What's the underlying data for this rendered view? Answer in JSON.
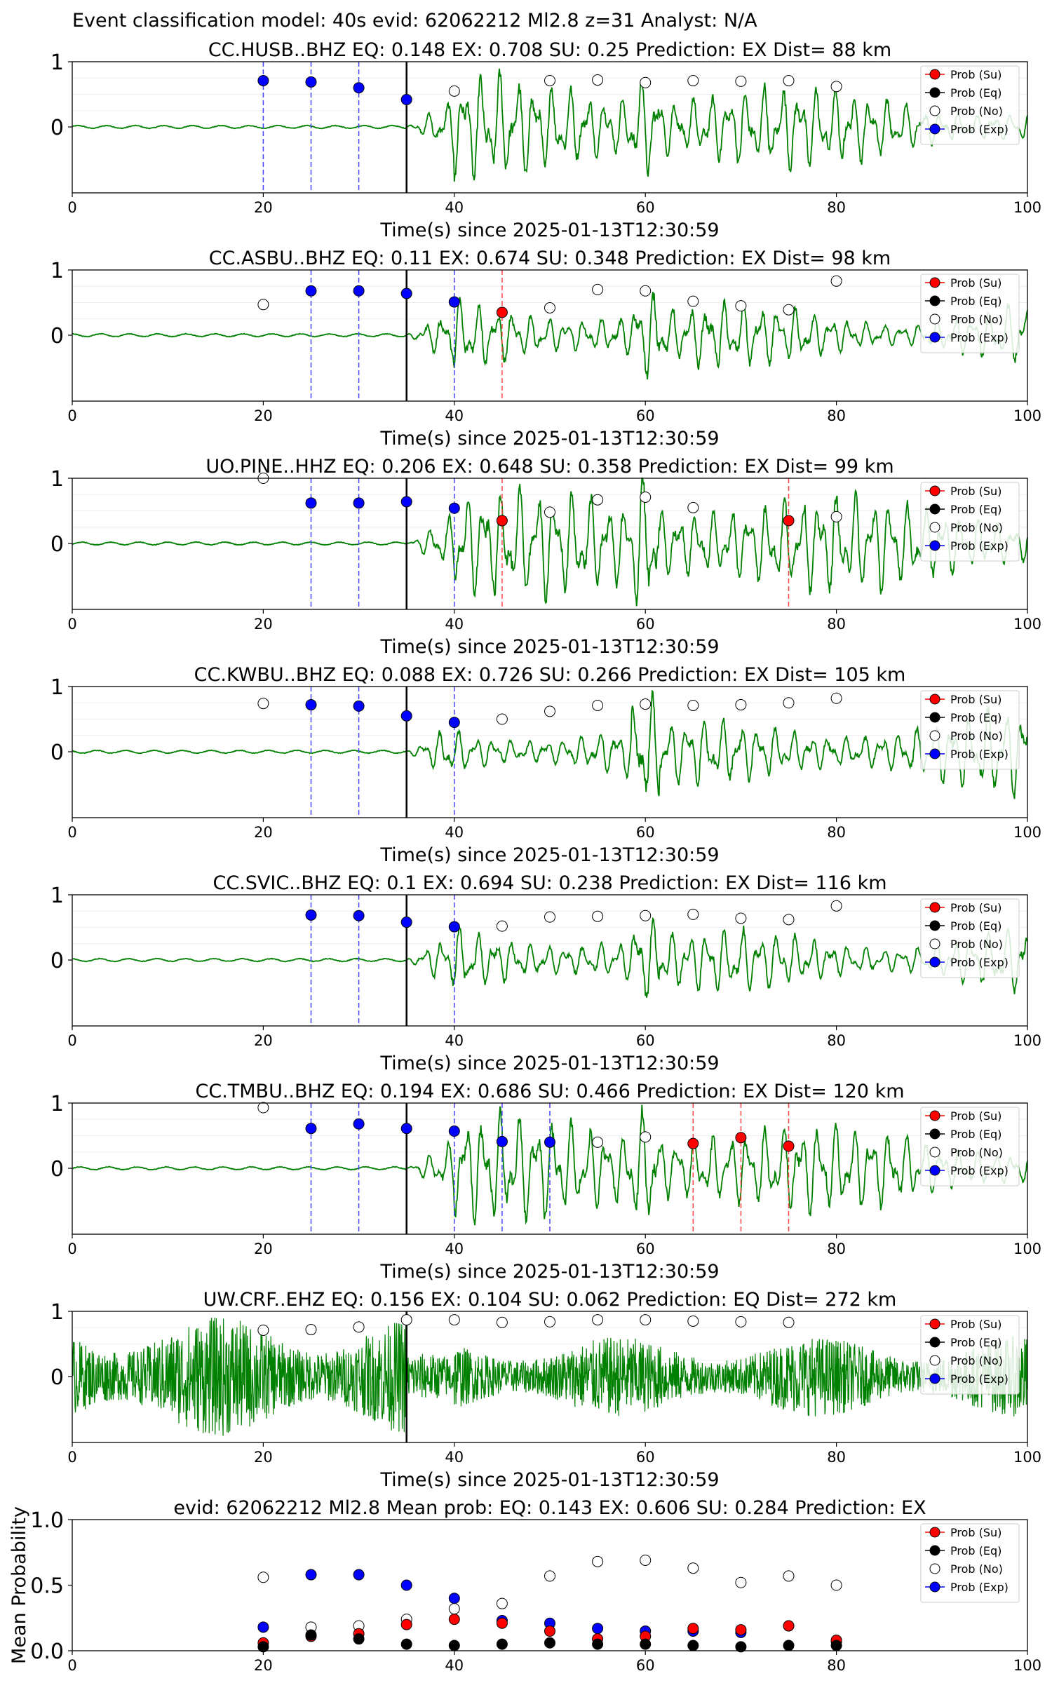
{
  "figure": {
    "title": "Event classification model: 40s evid: 62062212 Ml2.8 z=31 Analyst: N/A"
  },
  "legend_labels": [
    "Prob (Su)",
    "Prob (Eq)",
    "Prob (No)",
    "Prob (Exp)"
  ],
  "colors": {
    "waveform": "#008000",
    "su": "#ff0000",
    "eq": "#000000",
    "no": "#ffffff",
    "exp": "#0000ff",
    "arrival_line": "#000000"
  },
  "chart_data": [
    {
      "type": "line",
      "title": "CC.HUSB..BHZ   EQ: 0.148  EX: 0.708  SU: 0.25   Prediction: EX    Dist= 88 km",
      "xlabel": "Time(s) since 2025-01-13T12:30:59",
      "xlim": [
        0,
        100
      ],
      "xticks": [
        "0",
        "20",
        "40",
        "60",
        "80",
        "100"
      ],
      "yticks": [
        "0",
        "1"
      ],
      "arrival": 35,
      "noise": false,
      "series": [
        {
          "name": "Prob (No)",
          "points": [
            [
              40,
              0.55
            ],
            [
              50,
              0.71
            ],
            [
              55,
              0.72
            ],
            [
              60,
              0.68
            ],
            [
              65,
              0.71
            ],
            [
              70,
              0.7
            ],
            [
              75,
              0.71
            ],
            [
              80,
              0.62
            ]
          ]
        },
        {
          "name": "Prob (Exp)",
          "points": [
            [
              20,
              0.71
            ],
            [
              25,
              0.69
            ],
            [
              30,
              0.6
            ],
            [
              35,
              0.42
            ]
          ]
        },
        {
          "name": "Prob (Su)",
          "points": []
        },
        {
          "name": "Prob (Eq)",
          "points": []
        }
      ]
    },
    {
      "type": "line",
      "title": "CC.ASBU..BHZ   EQ: 0.11  EX: 0.674  SU: 0.348   Prediction: EX    Dist= 98 km",
      "xlabel": "Time(s) since 2025-01-13T12:30:59",
      "xlim": [
        0,
        100
      ],
      "xticks": [
        "0",
        "20",
        "40",
        "60",
        "80",
        "100"
      ],
      "yticks": [
        "0",
        "1"
      ],
      "arrival": 35,
      "noise": false,
      "series": [
        {
          "name": "Prob (No)",
          "points": [
            [
              20,
              0.47
            ],
            [
              50,
              0.42
            ],
            [
              55,
              0.7
            ],
            [
              60,
              0.68
            ],
            [
              65,
              0.52
            ],
            [
              70,
              0.45
            ],
            [
              75,
              0.39
            ],
            [
              80,
              0.83
            ]
          ]
        },
        {
          "name": "Prob (Exp)",
          "points": [
            [
              25,
              0.68
            ],
            [
              30,
              0.68
            ],
            [
              35,
              0.64
            ],
            [
              40,
              0.51
            ]
          ]
        },
        {
          "name": "Prob (Su)",
          "points": [
            [
              45,
              0.35
            ]
          ]
        },
        {
          "name": "Prob (Eq)",
          "points": []
        }
      ]
    },
    {
      "type": "line",
      "title": "UO.PINE..HHZ   EQ: 0.206  EX: 0.648  SU: 0.358   Prediction: EX    Dist= 99 km",
      "xlabel": "Time(s) since 2025-01-13T12:30:59",
      "xlim": [
        0,
        100
      ],
      "xticks": [
        "0",
        "20",
        "40",
        "60",
        "80",
        "100"
      ],
      "yticks": [
        "0",
        "1"
      ],
      "arrival": 35,
      "noise": false,
      "series": [
        {
          "name": "Prob (No)",
          "points": [
            [
              20,
              1.0
            ],
            [
              50,
              0.48
            ],
            [
              55,
              0.67
            ],
            [
              60,
              0.71
            ],
            [
              65,
              0.55
            ],
            [
              80,
              0.41
            ]
          ]
        },
        {
          "name": "Prob (Exp)",
          "points": [
            [
              25,
              0.62
            ],
            [
              30,
              0.62
            ],
            [
              35,
              0.64
            ],
            [
              40,
              0.54
            ]
          ]
        },
        {
          "name": "Prob (Su)",
          "points": [
            [
              45,
              0.35
            ],
            [
              75,
              0.35
            ]
          ]
        },
        {
          "name": "Prob (Eq)",
          "points": []
        }
      ]
    },
    {
      "type": "line",
      "title": "CC.KWBU..BHZ   EQ: 0.088  EX: 0.726  SU: 0.266   Prediction: EX    Dist= 105 km",
      "xlabel": "Time(s) since 2025-01-13T12:30:59",
      "xlim": [
        0,
        100
      ],
      "xticks": [
        "0",
        "20",
        "40",
        "60",
        "80",
        "100"
      ],
      "yticks": [
        "0",
        "1"
      ],
      "arrival": 35,
      "noise": false,
      "series": [
        {
          "name": "Prob (No)",
          "points": [
            [
              20,
              0.74
            ],
            [
              45,
              0.5
            ],
            [
              50,
              0.62
            ],
            [
              55,
              0.71
            ],
            [
              60,
              0.73
            ],
            [
              65,
              0.71
            ],
            [
              70,
              0.72
            ],
            [
              75,
              0.75
            ],
            [
              80,
              0.82
            ]
          ]
        },
        {
          "name": "Prob (Exp)",
          "points": [
            [
              25,
              0.72
            ],
            [
              30,
              0.7
            ],
            [
              35,
              0.55
            ],
            [
              40,
              0.45
            ]
          ]
        },
        {
          "name": "Prob (Su)",
          "points": []
        },
        {
          "name": "Prob (Eq)",
          "points": []
        }
      ]
    },
    {
      "type": "line",
      "title": "CC.SVIC..BHZ   EQ: 0.1  EX: 0.694  SU: 0.238   Prediction: EX    Dist= 116 km",
      "xlabel": "Time(s) since 2025-01-13T12:30:59",
      "xlim": [
        0,
        100
      ],
      "xticks": [
        "0",
        "20",
        "40",
        "60",
        "80",
        "100"
      ],
      "yticks": [
        "0",
        "1"
      ],
      "arrival": 35,
      "noise": false,
      "series": [
        {
          "name": "Prob (No)",
          "points": [
            [
              45,
              0.52
            ],
            [
              50,
              0.66
            ],
            [
              55,
              0.67
            ],
            [
              60,
              0.68
            ],
            [
              65,
              0.7
            ],
            [
              70,
              0.64
            ],
            [
              75,
              0.62
            ],
            [
              80,
              0.83
            ]
          ]
        },
        {
          "name": "Prob (Exp)",
          "points": [
            [
              25,
              0.69
            ],
            [
              30,
              0.68
            ],
            [
              35,
              0.58
            ],
            [
              40,
              0.51
            ]
          ]
        },
        {
          "name": "Prob (Su)",
          "points": []
        },
        {
          "name": "Prob (Eq)",
          "points": []
        }
      ]
    },
    {
      "type": "line",
      "title": "CC.TMBU..BHZ   EQ: 0.194  EX: 0.686  SU: 0.466   Prediction: EX    Dist= 120 km",
      "xlabel": "Time(s) since 2025-01-13T12:30:59",
      "xlim": [
        0,
        100
      ],
      "xticks": [
        "0",
        "20",
        "40",
        "60",
        "80",
        "100"
      ],
      "yticks": [
        "0",
        "1"
      ],
      "arrival": 35,
      "noise": false,
      "series": [
        {
          "name": "Prob (No)",
          "points": [
            [
              20,
              0.93
            ],
            [
              55,
              0.4
            ],
            [
              60,
              0.48
            ]
          ]
        },
        {
          "name": "Prob (Exp)",
          "points": [
            [
              25,
              0.61
            ],
            [
              30,
              0.68
            ],
            [
              35,
              0.61
            ],
            [
              40,
              0.57
            ],
            [
              45,
              0.41
            ],
            [
              50,
              0.4
            ]
          ]
        },
        {
          "name": "Prob (Su)",
          "points": [
            [
              65,
              0.38
            ],
            [
              70,
              0.47
            ],
            [
              75,
              0.34
            ]
          ]
        },
        {
          "name": "Prob (Eq)",
          "points": []
        }
      ]
    },
    {
      "type": "line",
      "title": "UW.CRF..EHZ   EQ: 0.156  EX: 0.104  SU: 0.062   Prediction: EQ    Dist= 272 km",
      "xlabel": "Time(s) since 2025-01-13T12:30:59",
      "xlim": [
        0,
        100
      ],
      "xticks": [
        "0",
        "20",
        "40",
        "60",
        "80",
        "100"
      ],
      "yticks": [
        "0",
        "1"
      ],
      "arrival": 35,
      "noise": true,
      "series": [
        {
          "name": "Prob (No)",
          "points": [
            [
              20,
              0.71
            ],
            [
              25,
              0.72
            ],
            [
              30,
              0.76
            ],
            [
              35,
              0.87
            ],
            [
              40,
              0.87
            ],
            [
              45,
              0.83
            ],
            [
              50,
              0.84
            ],
            [
              55,
              0.87
            ],
            [
              60,
              0.87
            ],
            [
              65,
              0.85
            ],
            [
              70,
              0.84
            ],
            [
              75,
              0.83
            ]
          ]
        },
        {
          "name": "Prob (Exp)",
          "points": []
        },
        {
          "name": "Prob (Su)",
          "points": []
        },
        {
          "name": "Prob (Eq)",
          "points": []
        }
      ]
    },
    {
      "type": "scatter",
      "title": "evid: 62062212  Ml2.8   Mean prob:   EQ: 0.143  EX: 0.606  SU: 0.284   Prediction: EX",
      "ylabel": "Mean Probability",
      "xlim": [
        0,
        100
      ],
      "ylim": [
        0,
        1
      ],
      "xticks": [
        "0",
        "20",
        "40",
        "60",
        "80",
        "100"
      ],
      "yticks": [
        "0.0",
        "0.5",
        "1.0"
      ],
      "series": [
        {
          "name": "Prob (No)",
          "points": [
            [
              20,
              0.56
            ],
            [
              25,
              0.18
            ],
            [
              30,
              0.19
            ],
            [
              35,
              0.24
            ],
            [
              40,
              0.32
            ],
            [
              45,
              0.36
            ],
            [
              50,
              0.57
            ],
            [
              55,
              0.68
            ],
            [
              60,
              0.69
            ],
            [
              65,
              0.63
            ],
            [
              70,
              0.52
            ],
            [
              75,
              0.57
            ],
            [
              80,
              0.5
            ]
          ]
        },
        {
          "name": "Prob (Exp)",
          "points": [
            [
              20,
              0.18
            ],
            [
              25,
              0.58
            ],
            [
              30,
              0.58
            ],
            [
              35,
              0.5
            ],
            [
              40,
              0.4
            ],
            [
              45,
              0.23
            ],
            [
              50,
              0.21
            ],
            [
              55,
              0.17
            ],
            [
              60,
              0.15
            ],
            [
              65,
              0.15
            ],
            [
              70,
              0.14
            ],
            [
              75,
              0.19
            ],
            [
              80,
              0.07
            ]
          ]
        },
        {
          "name": "Prob (Su)",
          "points": [
            [
              20,
              0.06
            ],
            [
              25,
              0.11
            ],
            [
              30,
              0.13
            ],
            [
              35,
              0.2
            ],
            [
              40,
              0.24
            ],
            [
              45,
              0.21
            ],
            [
              50,
              0.15
            ],
            [
              55,
              0.09
            ],
            [
              60,
              0.11
            ],
            [
              65,
              0.17
            ],
            [
              70,
              0.16
            ],
            [
              75,
              0.19
            ],
            [
              80,
              0.08
            ]
          ]
        },
        {
          "name": "Prob (Eq)",
          "points": [
            [
              20,
              0.03
            ],
            [
              25,
              0.12
            ],
            [
              30,
              0.09
            ],
            [
              35,
              0.05
            ],
            [
              40,
              0.04
            ],
            [
              45,
              0.05
            ],
            [
              50,
              0.06
            ],
            [
              55,
              0.05
            ],
            [
              60,
              0.05
            ],
            [
              65,
              0.04
            ],
            [
              70,
              0.03
            ],
            [
              75,
              0.04
            ],
            [
              80,
              0.04
            ]
          ]
        }
      ]
    }
  ]
}
